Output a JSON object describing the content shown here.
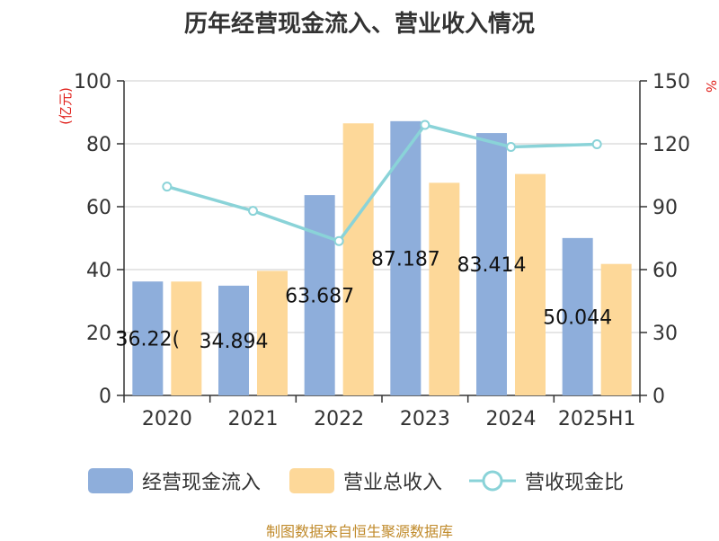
{
  "chart_data": {
    "type": "bar",
    "title": "历年经营现金流入、营业收入情况",
    "categories": [
      "2020",
      "2021",
      "2022",
      "2023",
      "2024",
      "2025H1"
    ],
    "y_left": {
      "unit_label": "(亿元)",
      "range": [
        0,
        100
      ],
      "ticks": [
        "0",
        "20",
        "40",
        "60",
        "80",
        "100"
      ]
    },
    "y_right": {
      "unit_label": "%",
      "range": [
        0,
        150
      ],
      "ticks": [
        "0",
        "30",
        "60",
        "90",
        "120",
        "150"
      ]
    },
    "grid": true,
    "legend_position": "bottom",
    "series": [
      {
        "name": "经营现金流入",
        "type": "bar",
        "axis": "left",
        "color": "#8eaedb",
        "values": [
          36.22,
          34.89,
          63.69,
          87.19,
          83.41,
          50.04
        ],
        "data_labels": [
          "36.22(",
          "34.894",
          "63.687",
          "87.187",
          "83.414",
          "50.044"
        ]
      },
      {
        "name": "营业总收入",
        "type": "bar",
        "axis": "left",
        "color": "#fdd899",
        "values": [
          36.2,
          39.6,
          86.5,
          67.6,
          70.4,
          41.8
        ]
      },
      {
        "name": "营收现金比",
        "type": "line",
        "axis": "right",
        "color": "#8ad3d8",
        "values": [
          99.6,
          88.0,
          73.6,
          129.0,
          118.5,
          119.8
        ]
      }
    ]
  },
  "footer": {
    "source_text": "制图数据来自恒生聚源数据库"
  }
}
